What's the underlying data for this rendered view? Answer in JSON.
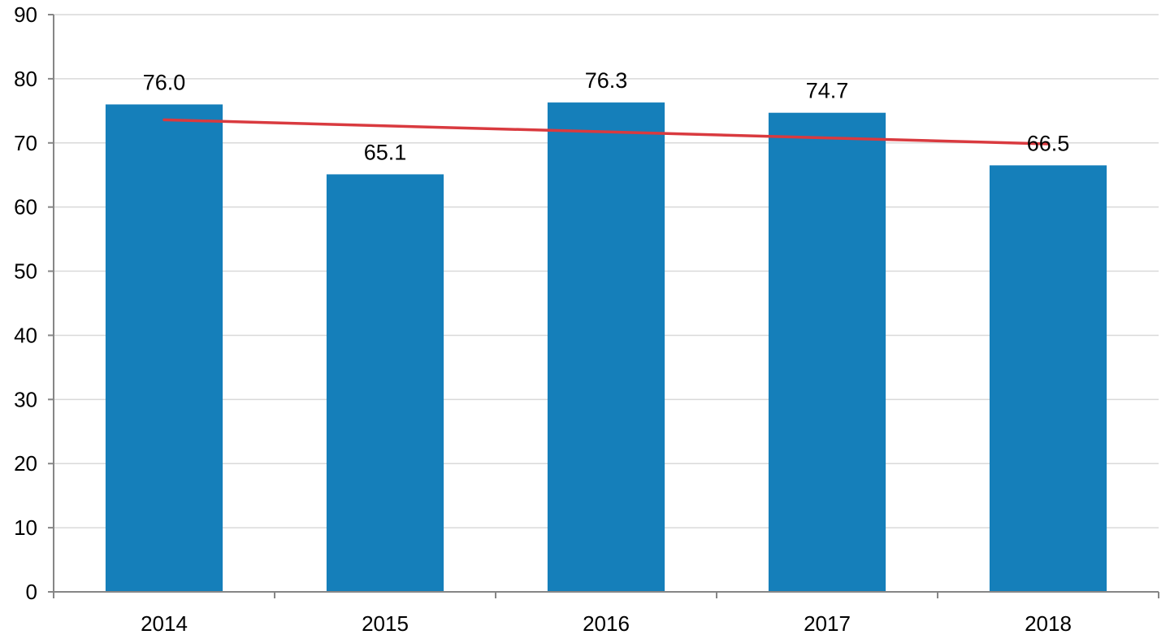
{
  "chart_data": {
    "type": "bar",
    "categories": [
      "2014",
      "2015",
      "2016",
      "2017",
      "2018"
    ],
    "series": [
      {
        "values": [
          76.0,
          65.1,
          76.3,
          74.7,
          66.5
        ],
        "data_labels": [
          "76.0",
          "65.1",
          "76.3",
          "74.7",
          "66.5"
        ],
        "color": "#157fba"
      }
    ],
    "trendline": {
      "type": "linear",
      "color": "#d93a3f"
    },
    "y_ticks": [
      "0",
      "10",
      "20",
      "30",
      "40",
      "50",
      "60",
      "70",
      "80",
      "90"
    ],
    "ylim": [
      0,
      90
    ],
    "grid": true,
    "legend": false,
    "title": "",
    "xlabel": "",
    "ylabel": ""
  }
}
